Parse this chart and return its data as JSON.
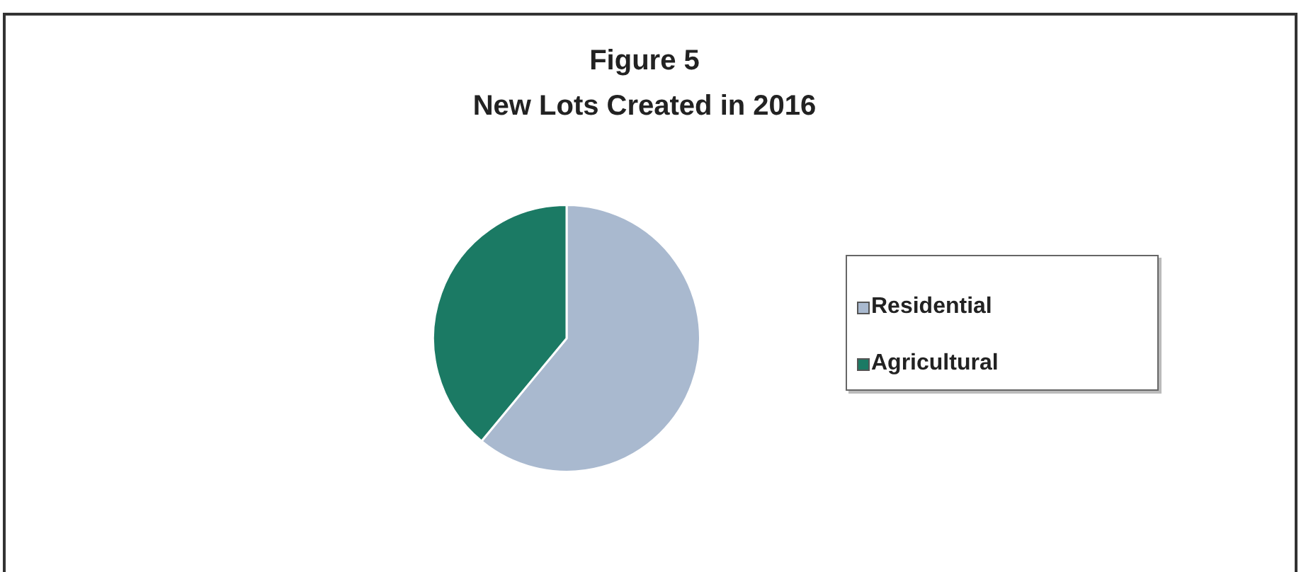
{
  "chart_data": {
    "type": "pie",
    "title": "Figure 5",
    "subtitle": "New Lots Created in 2016",
    "categories": [
      "Residential",
      "Agricultural"
    ],
    "values": [
      61,
      39
    ],
    "colors": [
      "#a9b9cf",
      "#1b7a64"
    ],
    "legend": "right"
  }
}
